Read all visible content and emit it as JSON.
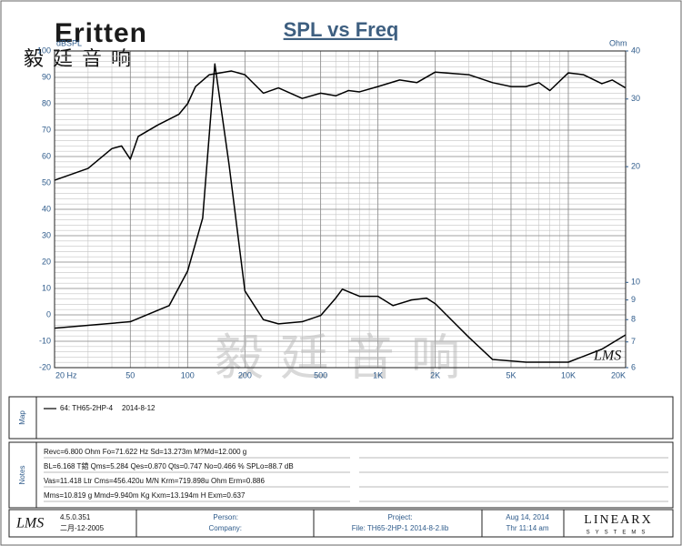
{
  "header": {
    "logo": "Eritten",
    "logo_chinese": "毅廷音响"
  },
  "watermark": "毅廷音响",
  "plot_logo": "LMS",
  "chart_data": {
    "type": "line",
    "title": "SPL vs Freq",
    "ylabel": "dBSPL",
    "y2label": "Ohm",
    "xscale": "log",
    "xlim": [
      20,
      20000
    ],
    "xticks": [
      {
        "value": 20,
        "label": "20 Hz"
      },
      50,
      100,
      200,
      500,
      {
        "value": 1000,
        "label": "1K"
      },
      {
        "value": 2000,
        "label": "2K"
      },
      {
        "value": 5000,
        "label": "5K"
      },
      {
        "value": 10000,
        "label": "10K"
      },
      {
        "value": 20000,
        "label": "20K"
      }
    ],
    "ylim": [
      -20,
      100
    ],
    "yticks": [
      -20,
      -10,
      0,
      10,
      20,
      30,
      40,
      50,
      60,
      70,
      80,
      90,
      100
    ],
    "y2scale": "log",
    "y2lim": [
      6,
      40
    ],
    "y2ticks": [
      6,
      7,
      8,
      9,
      10,
      20,
      30,
      40
    ],
    "grid": true,
    "minor_grid": true,
    "series": [
      {
        "color": "#000000",
        "x": [
          20,
          30,
          40,
          45,
          50,
          55,
          70,
          90,
          100,
          110,
          130,
          170,
          200,
          250,
          300,
          400,
          500,
          600,
          700,
          800,
          1000,
          1300,
          1600,
          2000,
          3000,
          4000,
          5000,
          6000,
          7000,
          8000,
          10000,
          12000,
          15000,
          17000,
          20000
        ],
        "values": [
          51,
          55.5,
          63,
          64,
          59,
          67.6,
          72,
          76,
          80,
          86.5,
          91,
          92.4,
          91,
          84,
          86,
          82,
          84,
          83,
          85,
          84.5,
          86.5,
          89,
          88,
          92,
          91,
          88,
          86.5,
          86.5,
          88,
          85,
          91.7,
          91,
          87.6,
          89,
          86
        ]
      },
      {
        "color": "#000000",
        "axis": "y2",
        "x": [
          20,
          50,
          80,
          100,
          120,
          139,
          165,
          200,
          250,
          300,
          400,
          500,
          600,
          650,
          800,
          1000,
          1200,
          1500,
          1800,
          2000,
          3000,
          4000,
          6000,
          10000,
          15000,
          20000
        ],
        "values": [
          7.6,
          7.9,
          8.7,
          10.7,
          14.7,
          37,
          20.3,
          9.5,
          8,
          7.8,
          7.9,
          8.2,
          9.1,
          9.6,
          9.2,
          9.2,
          8.7,
          9,
          9.1,
          8.8,
          7.2,
          6.3,
          6.2,
          6.2,
          6.7,
          7.3
        ]
      }
    ]
  },
  "map": {
    "label": "Map",
    "entry": "64: TH65-2HP-4",
    "date": "2014-8-12"
  },
  "notes": {
    "label": "Notes",
    "lines": [
      "Revc=6.800 Ohm  Fo=71.622 Hz  Sd=13.273m M?Md=12.000 g",
      "BL=6.168 T鍣  Qms=5.284  Qes=0.870  Qts=0.747  No=0.466 %  SPLo=88.7 dB",
      "Vas=11.418 Ltr  Cms=456.420u M/N  Krm=719.898u Ohm  Erm=0.886",
      "Mms=10.819 g  Mmd=9.940m Kg  Kxm=13.194m H  Exm=0.637"
    ]
  },
  "footer": {
    "software": "LMS",
    "version": "4.5.0.351",
    "version_date": "二月-12-2005",
    "person": "Person:",
    "company": "Company:",
    "project": "Project:",
    "file": "File: TH65-2HP-1   2014-8-2.lib",
    "date": "Aug 14, 2014",
    "time": "Thr 11:14 am",
    "brand": "LINEARX",
    "brand_sub": "SYSTEMS"
  }
}
